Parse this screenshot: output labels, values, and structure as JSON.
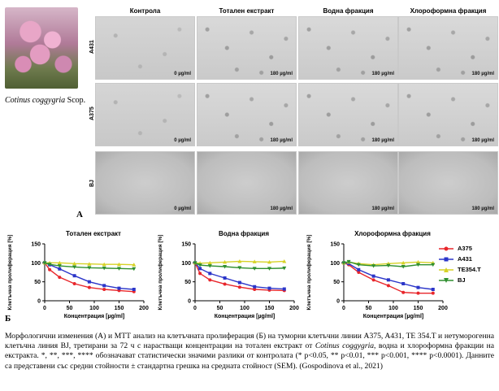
{
  "panel_a": {
    "plant_caption_species": "Cotinus coggygria",
    "plant_caption_author": " Scop.",
    "letter": "A",
    "column_headers": [
      "Контрола",
      "Тотален екстракт",
      "Водна фракция",
      "Хлороформна фракция"
    ],
    "row_labels": [
      "A431",
      "A375",
      "BJ"
    ],
    "dose_labels": [
      "0 µg/ml",
      "180 µg/ml",
      "180 µg/ml",
      "180 µg/ml"
    ]
  },
  "panel_b": {
    "letter": "Б",
    "ylabel": "Клетъчна пролиферация [%]",
    "xlabel": "Концентрация [µg/ml]",
    "legend": [
      {
        "name": "A375",
        "color": "#e8262b"
      },
      {
        "name": "A431",
        "color": "#2b35c9"
      },
      {
        "name": "TE354.T",
        "color": "#d6d226"
      },
      {
        "name": "BJ",
        "color": "#2f8f2f"
      }
    ]
  },
  "chart_data": [
    {
      "type": "line",
      "title": "Тотален екстракт",
      "xlabel": "Концентрация [µg/ml]",
      "ylabel": "Клетъчна пролиферация [%]",
      "xlim": [
        0,
        200
      ],
      "ylim": [
        0,
        150
      ],
      "x_ticks": [
        0,
        50,
        100,
        150,
        200
      ],
      "y_ticks": [
        0,
        50,
        100,
        150
      ],
      "x": [
        0,
        10,
        30,
        60,
        90,
        120,
        150,
        180
      ],
      "series": [
        {
          "name": "A375",
          "values": [
            100,
            82,
            62,
            45,
            35,
            30,
            27,
            24
          ]
        },
        {
          "name": "A431",
          "values": [
            100,
            95,
            84,
            66,
            50,
            40,
            33,
            30
          ]
        },
        {
          "name": "TE354.T",
          "values": [
            100,
            100,
            100,
            98,
            97,
            96,
            96,
            95
          ]
        },
        {
          "name": "BJ",
          "values": [
            100,
            96,
            92,
            89,
            87,
            86,
            85,
            84
          ]
        }
      ]
    },
    {
      "type": "line",
      "title": "Водна фракция",
      "xlabel": "Концентрация [µg/ml]",
      "ylabel": "Клетъчна пролиферация [%]",
      "xlim": [
        0,
        200
      ],
      "ylim": [
        0,
        150
      ],
      "x_ticks": [
        0,
        50,
        100,
        150,
        200
      ],
      "y_ticks": [
        0,
        50,
        100,
        150
      ],
      "x": [
        0,
        10,
        30,
        60,
        90,
        120,
        150,
        180
      ],
      "series": [
        {
          "name": "A375",
          "values": [
            100,
            72,
            55,
            44,
            36,
            30,
            28,
            27
          ]
        },
        {
          "name": "A431",
          "values": [
            100,
            85,
            72,
            60,
            48,
            37,
            33,
            31
          ]
        },
        {
          "name": "TE354.T",
          "values": [
            100,
            99,
            100,
            102,
            104,
            103,
            102,
            104
          ]
        },
        {
          "name": "BJ",
          "values": [
            100,
            94,
            92,
            90,
            87,
            85,
            85,
            86
          ]
        }
      ]
    },
    {
      "type": "line",
      "title": "Хлороформна фракция",
      "xlabel": "Концентрация [µg/ml]",
      "ylabel": "Клетъчна пролиферация [%]",
      "xlim": [
        0,
        200
      ],
      "ylim": [
        0,
        150
      ],
      "x_ticks": [
        0,
        50,
        100,
        150,
        200
      ],
      "y_ticks": [
        0,
        50,
        100,
        150
      ],
      "x": [
        0,
        10,
        30,
        60,
        90,
        120,
        150,
        180
      ],
      "series": [
        {
          "name": "A375",
          "values": [
            100,
            95,
            75,
            55,
            40,
            22,
            20,
            20
          ]
        },
        {
          "name": "A431",
          "values": [
            100,
            98,
            82,
            65,
            55,
            45,
            35,
            30
          ]
        },
        {
          "name": "TE354.T",
          "values": [
            100,
            102,
            98,
            95,
            98,
            100,
            102,
            100
          ]
        },
        {
          "name": "BJ",
          "values": [
            100,
            103,
            95,
            92,
            93,
            90,
            95,
            95
          ]
        }
      ]
    }
  ],
  "caption": {
    "part1": "Морфологични изменения (А) и МТТ анализ на клетъчната пролиферация (Б) на туморни клетъчни линии A375, A431, TE 354.T и нетуморогенна клетъчна линия BJ, третирани за 72 ч с нарастващи концентрации на тотален екстракт от ",
    "species": "Cotinus coggygria",
    "part2": ", водна и хлороформна фракции на екстракта. *, **, ***, **** обозначават статистически значими разлики от контролата (* p<0.05, ** p<0.01, *** p<0.001, **** p<0.0001). Данните са представени със средни стойности ± стандартна грешка на средната стойност (SEM). (Gospodinova et al., 2021)"
  }
}
